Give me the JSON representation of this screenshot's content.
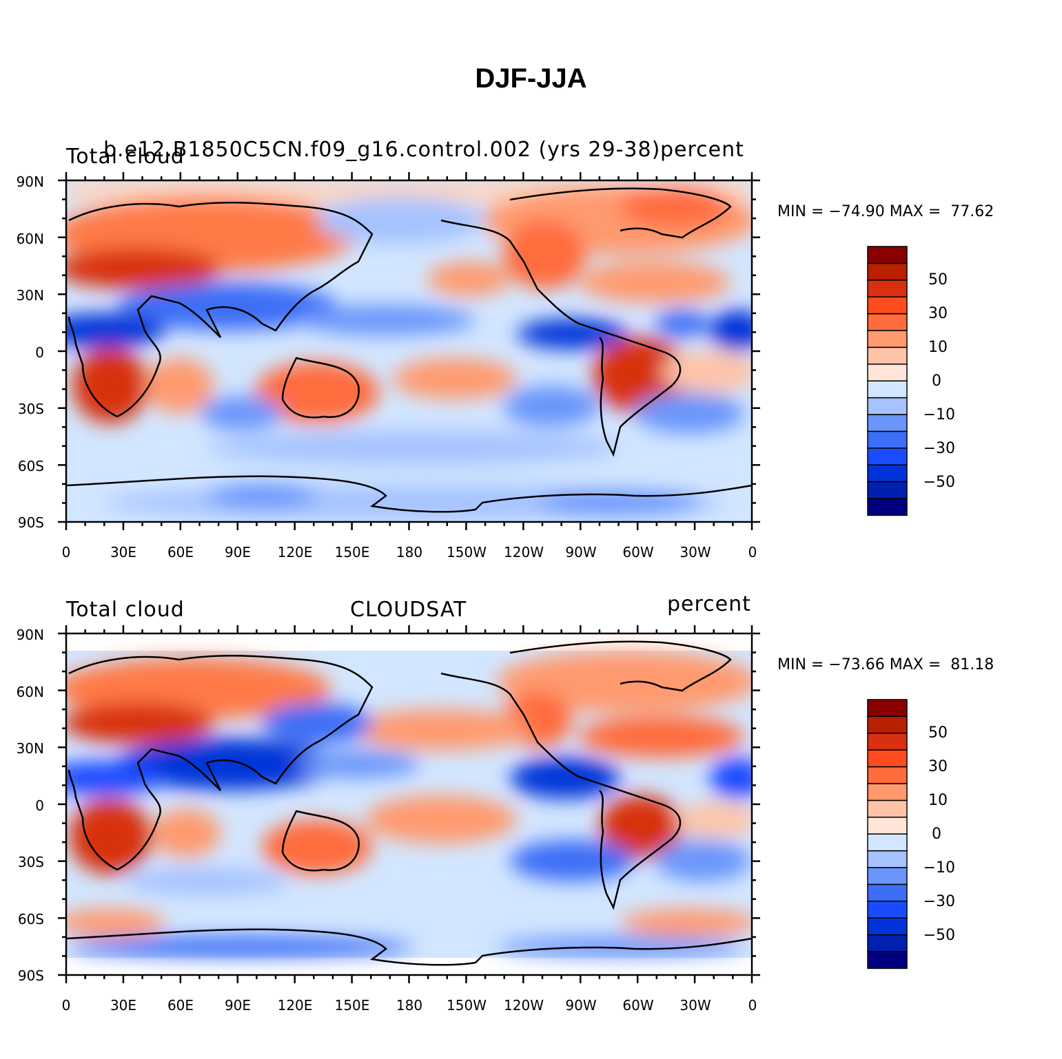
{
  "title": "DJF-JJA",
  "colorbar": {
    "colors": [
      "#000080",
      "#0020b0",
      "#0034d8",
      "#1a4cff",
      "#3c6ef6",
      "#6a96fb",
      "#a6c3ff",
      "#d2e6ff",
      "#ffe6d8",
      "#ffc4a8",
      "#ff9a6e",
      "#ff6c3c",
      "#ff4c1e",
      "#d83010",
      "#b82000",
      "#8a0000"
    ],
    "tick_labels": [
      "50",
      "30",
      "10",
      "0",
      "−10",
      "−30",
      "−50"
    ]
  },
  "axes": {
    "y_ticks": [
      "90N",
      "60N",
      "30N",
      "0",
      "30S",
      "60S",
      "90S"
    ],
    "x_ticks": [
      "0",
      "30E",
      "60E",
      "90E",
      "120E",
      "150E",
      "180",
      "150W",
      "120W",
      "90W",
      "60W",
      "30W",
      "0"
    ]
  },
  "panels": [
    {
      "left_label": "Total cloud",
      "center_label": "b.e12.B1850C5CN.f09_g16.control.002 (yrs 29-38)",
      "right_label": "percent",
      "min_max": "MIN = −74.90 MAX =  77.62"
    },
    {
      "left_label": "Total cloud",
      "center_label": "CLOUDSAT",
      "right_label": "percent",
      "min_max": "MIN = −73.66 MAX =  81.18"
    }
  ]
}
